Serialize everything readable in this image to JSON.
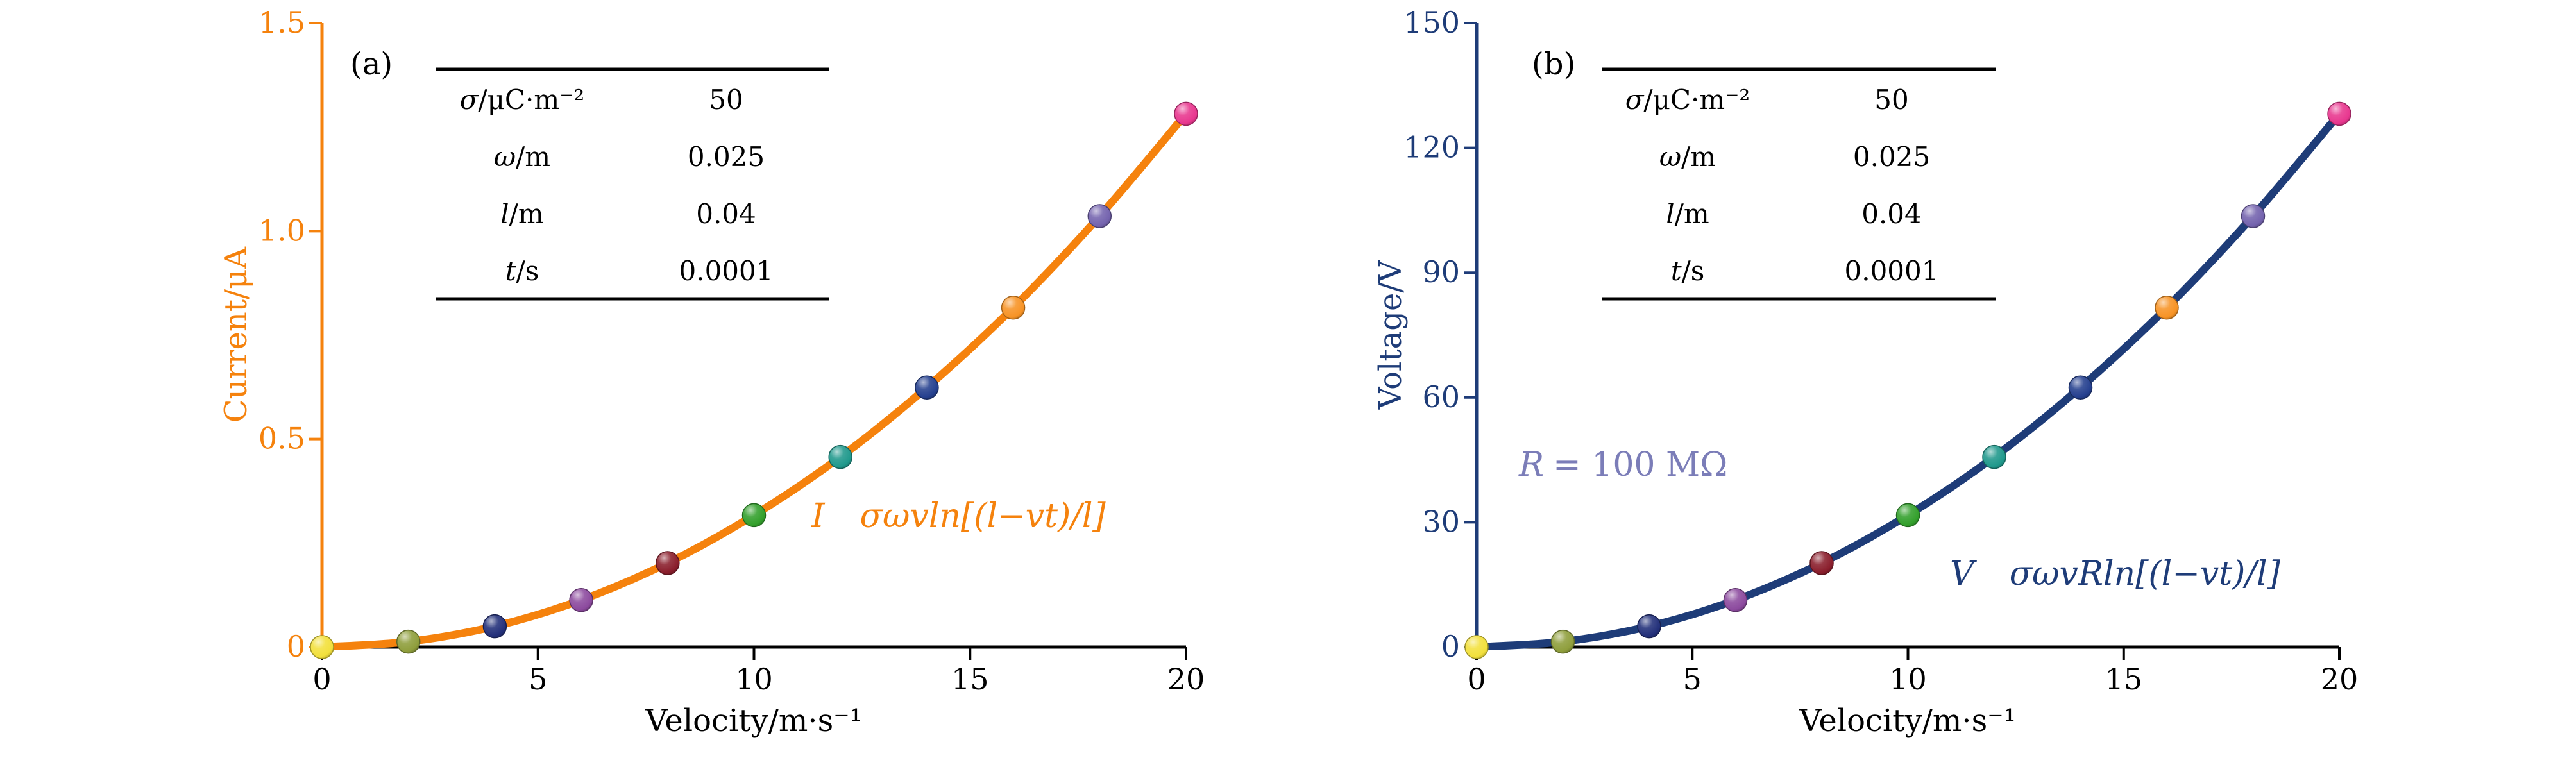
{
  "figure": {
    "background": "#ffffff"
  },
  "chart_data": [
    {
      "type": "line",
      "panel_tag": "(a)",
      "xlabel": "Velocity/m·s⁻¹",
      "ylabel": "Current/μA",
      "xlim": [
        0,
        20
      ],
      "ylim": [
        0,
        1.5
      ],
      "xticks": [
        0,
        5,
        10,
        15,
        20
      ],
      "xtick_labels": [
        "0",
        "5",
        "10",
        "15",
        "20"
      ],
      "yticks": [
        0,
        0.5,
        1.0,
        1.5
      ],
      "ytick_labels": [
        "0",
        "0.5",
        "1.0",
        "1.5"
      ],
      "x": [
        0,
        2,
        4,
        6,
        8,
        10,
        12,
        14,
        16,
        18,
        20
      ],
      "y": [
        0,
        0.013,
        0.05,
        0.113,
        0.202,
        0.317,
        0.457,
        0.624,
        0.816,
        1.036,
        1.282
      ],
      "point_colors": [
        "#f2e03c",
        "#8f9e3c",
        "#23307a",
        "#8c4a9e",
        "#8a1e2c",
        "#33a02c",
        "#20998c",
        "#25408f",
        "#f79325",
        "#7463ae",
        "#e8378f"
      ],
      "curve_color": "#f5820d",
      "axis_color": "#f5820d",
      "x_axis_color": "#000000",
      "equation": {
        "lhs": "I",
        "rhs": "σωvln[(l−vt)/l]"
      },
      "equation_color": "#f5820d",
      "table": {
        "rows": [
          {
            "sym": "σ",
            "unit": "/μC·m⁻²",
            "value": "50"
          },
          {
            "sym": "ω",
            "unit": "/m",
            "value": "0.025"
          },
          {
            "sym": "l",
            "unit": "/m",
            "value": "0.04"
          },
          {
            "sym": "t",
            "unit": "/s",
            "value": "0.0001"
          }
        ]
      }
    },
    {
      "type": "line",
      "panel_tag": "(b)",
      "xlabel": "Velocity/m·s⁻¹",
      "ylabel": "Voltage/V",
      "xlim": [
        0,
        20
      ],
      "ylim": [
        0,
        150
      ],
      "xticks": [
        0,
        5,
        10,
        15,
        20
      ],
      "xtick_labels": [
        "0",
        "5",
        "10",
        "15",
        "20"
      ],
      "yticks": [
        0,
        30,
        60,
        90,
        120,
        150
      ],
      "ytick_labels": [
        "0",
        "30",
        "60",
        "90",
        "120",
        "150"
      ],
      "x": [
        0,
        2,
        4,
        6,
        8,
        10,
        12,
        14,
        16,
        18,
        20
      ],
      "y": [
        0,
        1.3,
        5.0,
        11.3,
        20.2,
        31.7,
        45.7,
        62.4,
        81.6,
        103.6,
        128.2
      ],
      "point_colors": [
        "#f2e03c",
        "#8f9e3c",
        "#23307a",
        "#8c4a9e",
        "#8a1e2c",
        "#33a02c",
        "#20998c",
        "#25408f",
        "#f79325",
        "#7463ae",
        "#e8378f"
      ],
      "curve_color": "#1e3c78",
      "axis_color": "#1e3c78",
      "x_axis_color": "#000000",
      "equation": {
        "lhs": "V",
        "rhs": "σωvRln[(l−vt)/l]"
      },
      "equation_color": "#1e3c78",
      "r_annotation": {
        "sym": "R",
        "rest": "= 100 MΩ",
        "color": "#7b7db8"
      },
      "table": {
        "rows": [
          {
            "sym": "σ",
            "unit": "/μC·m⁻²",
            "value": "50"
          },
          {
            "sym": "ω",
            "unit": "/m",
            "value": "0.025"
          },
          {
            "sym": "l",
            "unit": "/m",
            "value": "0.04"
          },
          {
            "sym": "t",
            "unit": "/s",
            "value": "0.0001"
          }
        ]
      }
    }
  ]
}
